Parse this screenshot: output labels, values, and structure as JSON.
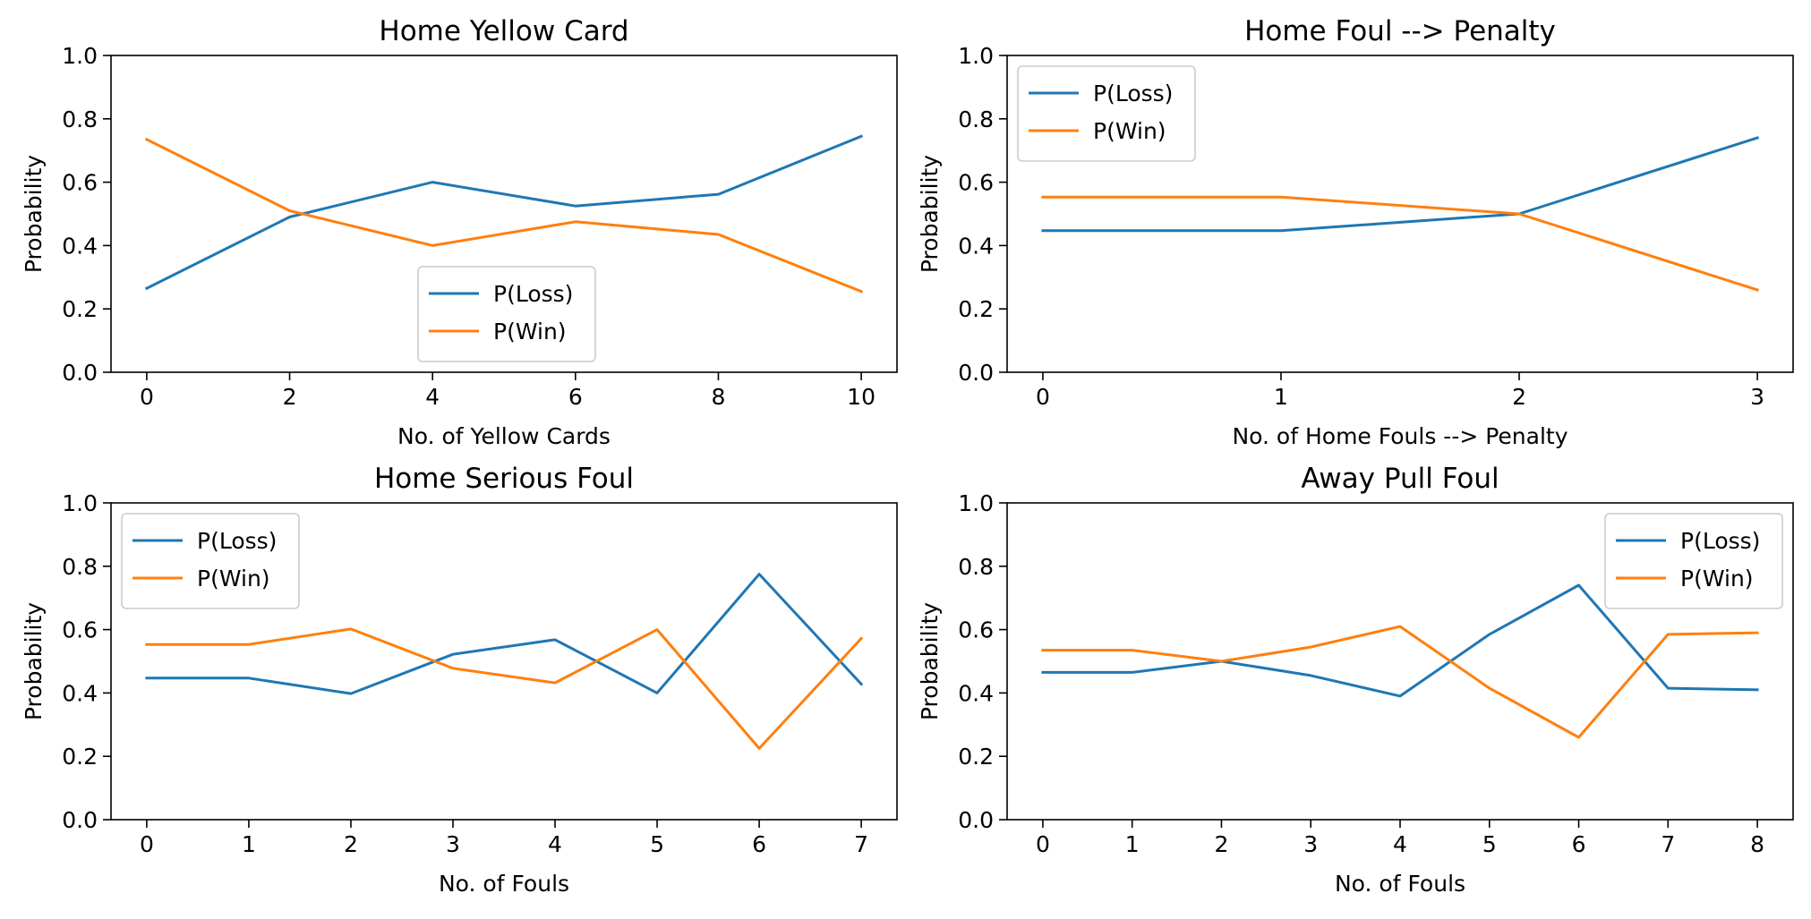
{
  "colors": {
    "loss": "#1f77b4",
    "win": "#ff7f0e"
  },
  "chart_data": [
    {
      "type": "line",
      "title": "Home Yellow Card",
      "xlabel": "No. of Yellow Cards",
      "ylabel": "Probability",
      "x": [
        0,
        2,
        4,
        6,
        8,
        10
      ],
      "xticks": [
        0,
        2,
        4,
        6,
        8,
        10
      ],
      "xlim": [
        -0.5,
        10.5
      ],
      "ylim": [
        0.0,
        1.0
      ],
      "yticks": [
        "0.0",
        "0.2",
        "0.4",
        "0.6",
        "0.8",
        "1.0"
      ],
      "legend_position": "lower-center",
      "series": [
        {
          "name": "P(Loss)",
          "color": "#1f77b4",
          "values": [
            0.265,
            0.49,
            0.6,
            0.525,
            0.562,
            0.745
          ]
        },
        {
          "name": "P(Win)",
          "color": "#ff7f0e",
          "values": [
            0.735,
            0.51,
            0.4,
            0.475,
            0.435,
            0.255
          ]
        }
      ]
    },
    {
      "type": "line",
      "title": "Home Foul --> Penalty",
      "xlabel": "No. of Home Fouls --> Penalty",
      "ylabel": "Probability",
      "x": [
        0,
        1,
        2,
        3
      ],
      "xticks": [
        0,
        1,
        2,
        3
      ],
      "xlim": [
        -0.15,
        3.15
      ],
      "ylim": [
        0.0,
        1.0
      ],
      "yticks": [
        "0.0",
        "0.2",
        "0.4",
        "0.6",
        "0.8",
        "1.0"
      ],
      "legend_position": "upper-left",
      "series": [
        {
          "name": "P(Loss)",
          "color": "#1f77b4",
          "values": [
            0.447,
            0.447,
            0.5,
            0.74
          ]
        },
        {
          "name": "P(Win)",
          "color": "#ff7f0e",
          "values": [
            0.553,
            0.553,
            0.5,
            0.26
          ]
        }
      ]
    },
    {
      "type": "line",
      "title": "Home Serious Foul",
      "xlabel": "No. of Fouls",
      "ylabel": "Probability",
      "x": [
        0,
        1,
        2,
        3,
        4,
        5,
        6,
        7
      ],
      "xticks": [
        0,
        1,
        2,
        3,
        4,
        5,
        6,
        7
      ],
      "xlim": [
        -0.35,
        7.35
      ],
      "ylim": [
        0.0,
        1.0
      ],
      "yticks": [
        "0.0",
        "0.2",
        "0.4",
        "0.6",
        "0.8",
        "1.0"
      ],
      "legend_position": "upper-left",
      "series": [
        {
          "name": "P(Loss)",
          "color": "#1f77b4",
          "values": [
            0.447,
            0.447,
            0.398,
            0.522,
            0.568,
            0.4,
            0.775,
            0.428
          ]
        },
        {
          "name": "P(Win)",
          "color": "#ff7f0e",
          "values": [
            0.553,
            0.553,
            0.602,
            0.478,
            0.432,
            0.6,
            0.225,
            0.572
          ]
        }
      ]
    },
    {
      "type": "line",
      "title": "Away Pull Foul",
      "xlabel": "No. of Fouls",
      "ylabel": "Probability",
      "x": [
        0,
        1,
        2,
        3,
        4,
        5,
        6,
        7,
        8
      ],
      "xticks": [
        0,
        1,
        2,
        3,
        4,
        5,
        6,
        7,
        8
      ],
      "xlim": [
        -0.4,
        8.4
      ],
      "ylim": [
        0.0,
        1.0
      ],
      "yticks": [
        "0.0",
        "0.2",
        "0.4",
        "0.6",
        "0.8",
        "1.0"
      ],
      "legend_position": "upper-right",
      "series": [
        {
          "name": "P(Loss)",
          "color": "#1f77b4",
          "values": [
            0.465,
            0.465,
            0.5,
            0.455,
            0.39,
            0.585,
            0.74,
            0.415,
            0.41
          ]
        },
        {
          "name": "P(Win)",
          "color": "#ff7f0e",
          "values": [
            0.535,
            0.535,
            0.5,
            0.545,
            0.61,
            0.415,
            0.26,
            0.585,
            0.59
          ]
        }
      ]
    }
  ]
}
